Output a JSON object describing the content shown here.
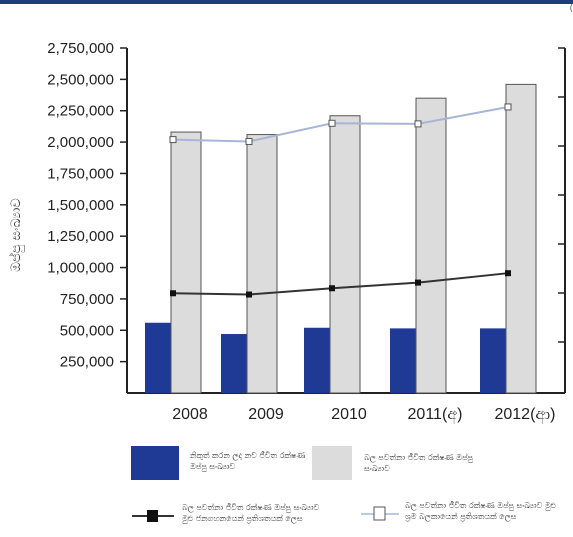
{
  "chart_data": {
    "type": "bar",
    "categories": [
      "2008",
      "2009",
      "2010",
      "2011(අ)",
      "2012(ආ)"
    ],
    "ylim": [
      0,
      2750000
    ],
    "y_ticks": [
      "2,750,000",
      "2,500,000",
      "2,250,000",
      "2,000,000",
      "1,750,000",
      "1,500,000",
      "1,250,000",
      "1,000,000",
      "750,000",
      "500,000",
      "250,000"
    ],
    "ylabel": "ඔප්පු සංඛ්‍යාව",
    "grid": false,
    "series": [
      {
        "name": "නිකුත් කරන ලද නව ජීවිත රක්ෂණ ඔප්පු සංඛ්‍යාව",
        "kind": "bar",
        "color": "#1e3a94",
        "values": [
          560000,
          470000,
          520000,
          515000,
          515000
        ]
      },
      {
        "name": "බල පවත්නා ජීවිත රක්ෂණ ඔප්පු සංඛ්‍යාව",
        "kind": "bar",
        "color": "#dcdcdc",
        "values": [
          2080000,
          2060000,
          2210000,
          2350000,
          2460000
        ]
      },
      {
        "name": "බල පවත්නා ජීවිත රක්ෂණ ඔප්පු සංඛ්‍යාව මුළු ජනගහනයෙන් ප්‍රතිශතයක් ලෙස",
        "kind": "line",
        "color": "#333333",
        "values": [
          795000,
          785000,
          835000,
          880000,
          955000
        ]
      },
      {
        "name": "බල පවත්නා ජීවිත රක්ෂණ ඔප්පු සංඛ්‍යාව මුළු ශ්‍රම බලකායෙන් ප්‍රතිශතයක් ලෙස",
        "kind": "line",
        "color": "#a9b5d6",
        "values": [
          2020000,
          2005000,
          2150000,
          2145000,
          2280000
        ]
      }
    ],
    "legend_placement": "bottom"
  },
  "top_mark": "("
}
